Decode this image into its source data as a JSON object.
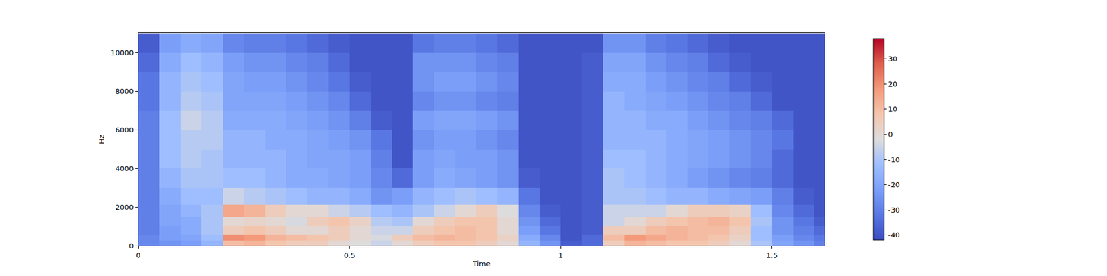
{
  "chart_data": {
    "type": "heatmap",
    "x_label": "Time",
    "y_label": "Hz",
    "x": [
      0.025,
      0.075,
      0.125,
      0.175,
      0.225,
      0.275,
      0.325,
      0.375,
      0.425,
      0.475,
      0.525,
      0.575,
      0.625,
      0.675,
      0.725,
      0.775,
      0.825,
      0.875,
      0.925,
      0.975,
      1.025,
      1.075,
      1.125,
      1.175,
      1.225,
      1.275,
      1.325,
      1.375,
      1.425,
      1.475,
      1.525,
      1.575,
      1.625
    ],
    "y": [
      125,
      375,
      750,
      1250,
      1750,
      2500,
      3500,
      4500,
      5500,
      6500,
      7500,
      8500,
      9500,
      10500
    ],
    "z": [
      [
        -28,
        -25,
        -22,
        -15,
        10,
        12,
        8,
        5,
        5,
        0,
        -2,
        -5,
        0,
        5,
        8,
        8,
        5,
        0,
        -15,
        -25,
        -38,
        -35,
        5,
        12,
        10,
        8,
        8,
        5,
        0,
        -10,
        -20,
        -25,
        -30
      ],
      [
        -28,
        -22,
        -20,
        -12,
        20,
        18,
        12,
        10,
        8,
        5,
        0,
        -3,
        5,
        10,
        12,
        10,
        8,
        3,
        -18,
        -28,
        -40,
        -35,
        10,
        18,
        15,
        12,
        10,
        8,
        3,
        -12,
        -22,
        -28,
        -32
      ],
      [
        -30,
        -22,
        -18,
        -10,
        5,
        8,
        5,
        0,
        0,
        5,
        0,
        -5,
        -5,
        5,
        8,
        10,
        8,
        0,
        -22,
        -32,
        -40,
        -38,
        5,
        5,
        10,
        12,
        10,
        10,
        5,
        -12,
        -25,
        -30,
        -35
      ],
      [
        -30,
        -20,
        -18,
        -10,
        0,
        2,
        0,
        -3,
        5,
        8,
        3,
        -8,
        -10,
        0,
        5,
        8,
        8,
        0,
        -25,
        -35,
        -40,
        -38,
        -5,
        0,
        5,
        8,
        10,
        12,
        8,
        -10,
        -25,
        -32,
        -38
      ],
      [
        -30,
        -20,
        -15,
        -10,
        15,
        12,
        5,
        0,
        0,
        -5,
        -8,
        -12,
        -15,
        -10,
        -5,
        0,
        5,
        -2,
        -28,
        -38,
        -40,
        -38,
        -5,
        -5,
        -5,
        0,
        5,
        5,
        3,
        -12,
        -28,
        -35,
        -40
      ],
      [
        -30,
        -18,
        -12,
        -12,
        -5,
        -8,
        -10,
        -12,
        -15,
        -15,
        -18,
        -25,
        -22,
        -15,
        -12,
        -10,
        -12,
        -15,
        -32,
        -40,
        -40,
        -38,
        -10,
        -10,
        -12,
        -15,
        -15,
        -18,
        -20,
        -22,
        -30,
        -38,
        -40
      ],
      [
        -30,
        -15,
        -10,
        -10,
        -12,
        -12,
        -15,
        -18,
        -18,
        -20,
        -22,
        -28,
        -35,
        -22,
        -18,
        -20,
        -22,
        -25,
        -38,
        -40,
        -40,
        -38,
        -10,
        -12,
        -15,
        -18,
        -22,
        -25,
        -28,
        -30,
        -35,
        -40,
        -40
      ],
      [
        -30,
        -12,
        -8,
        -10,
        -15,
        -15,
        -15,
        -18,
        -20,
        -20,
        -22,
        -30,
        -40,
        -22,
        -20,
        -22,
        -22,
        -25,
        -40,
        -40,
        -40,
        -38,
        -12,
        -12,
        -15,
        -18,
        -20,
        -22,
        -25,
        -28,
        -35,
        -40,
        -40
      ],
      [
        -30,
        -12,
        -8,
        -8,
        -15,
        -15,
        -18,
        -18,
        -20,
        -22,
        -25,
        -32,
        -40,
        -25,
        -22,
        -22,
        -25,
        -28,
        -40,
        -40,
        -40,
        -38,
        -15,
        -15,
        -15,
        -18,
        -20,
        -22,
        -25,
        -28,
        -32,
        -40,
        -40
      ],
      [
        -30,
        -12,
        -5,
        -8,
        -18,
        -18,
        -18,
        -20,
        -22,
        -25,
        -30,
        -38,
        -40,
        -22,
        -20,
        -20,
        -22,
        -25,
        -40,
        -40,
        -40,
        -38,
        -15,
        -15,
        -18,
        -18,
        -22,
        -25,
        -28,
        -30,
        -35,
        -40,
        -40
      ],
      [
        -32,
        -15,
        -8,
        -10,
        -20,
        -20,
        -20,
        -22,
        -25,
        -28,
        -35,
        -40,
        -40,
        -28,
        -25,
        -25,
        -28,
        -30,
        -40,
        -40,
        -40,
        -38,
        -15,
        -18,
        -20,
        -22,
        -25,
        -28,
        -30,
        -35,
        -40,
        -40,
        -40
      ],
      [
        -32,
        -15,
        -10,
        -12,
        -20,
        -22,
        -22,
        -25,
        -28,
        -32,
        -38,
        -40,
        -40,
        -25,
        -22,
        -22,
        -25,
        -28,
        -40,
        -40,
        -40,
        -38,
        -18,
        -18,
        -22,
        -25,
        -28,
        -30,
        -35,
        -38,
        -40,
        -40,
        -40
      ],
      [
        -35,
        -18,
        -12,
        -15,
        -22,
        -25,
        -25,
        -28,
        -30,
        -35,
        -40,
        -40,
        -40,
        -25,
        -25,
        -25,
        -28,
        -30,
        -40,
        -40,
        -40,
        -38,
        -20,
        -20,
        -25,
        -28,
        -30,
        -35,
        -38,
        -40,
        -40,
        -40,
        -40
      ],
      [
        -38,
        -22,
        -18,
        -20,
        -28,
        -30,
        -30,
        -32,
        -35,
        -38,
        -40,
        -40,
        -40,
        -32,
        -30,
        -30,
        -32,
        -35,
        -40,
        -40,
        -40,
        -40,
        -25,
        -25,
        -30,
        -32,
        -35,
        -38,
        -40,
        -40,
        -40,
        -40,
        -40
      ]
    ],
    "xlim": [
      0,
      1.625
    ],
    "xticks": [
      0,
      0.5,
      1,
      1.5
    ],
    "ylim": [
      0,
      11025
    ],
    "yticks": [
      0,
      2000,
      4000,
      6000,
      8000,
      10000
    ],
    "colorbar": {
      "range": [
        -42,
        38
      ],
      "ticks": [
        -40,
        -30,
        -20,
        -10,
        0,
        10,
        20,
        30
      ]
    }
  }
}
